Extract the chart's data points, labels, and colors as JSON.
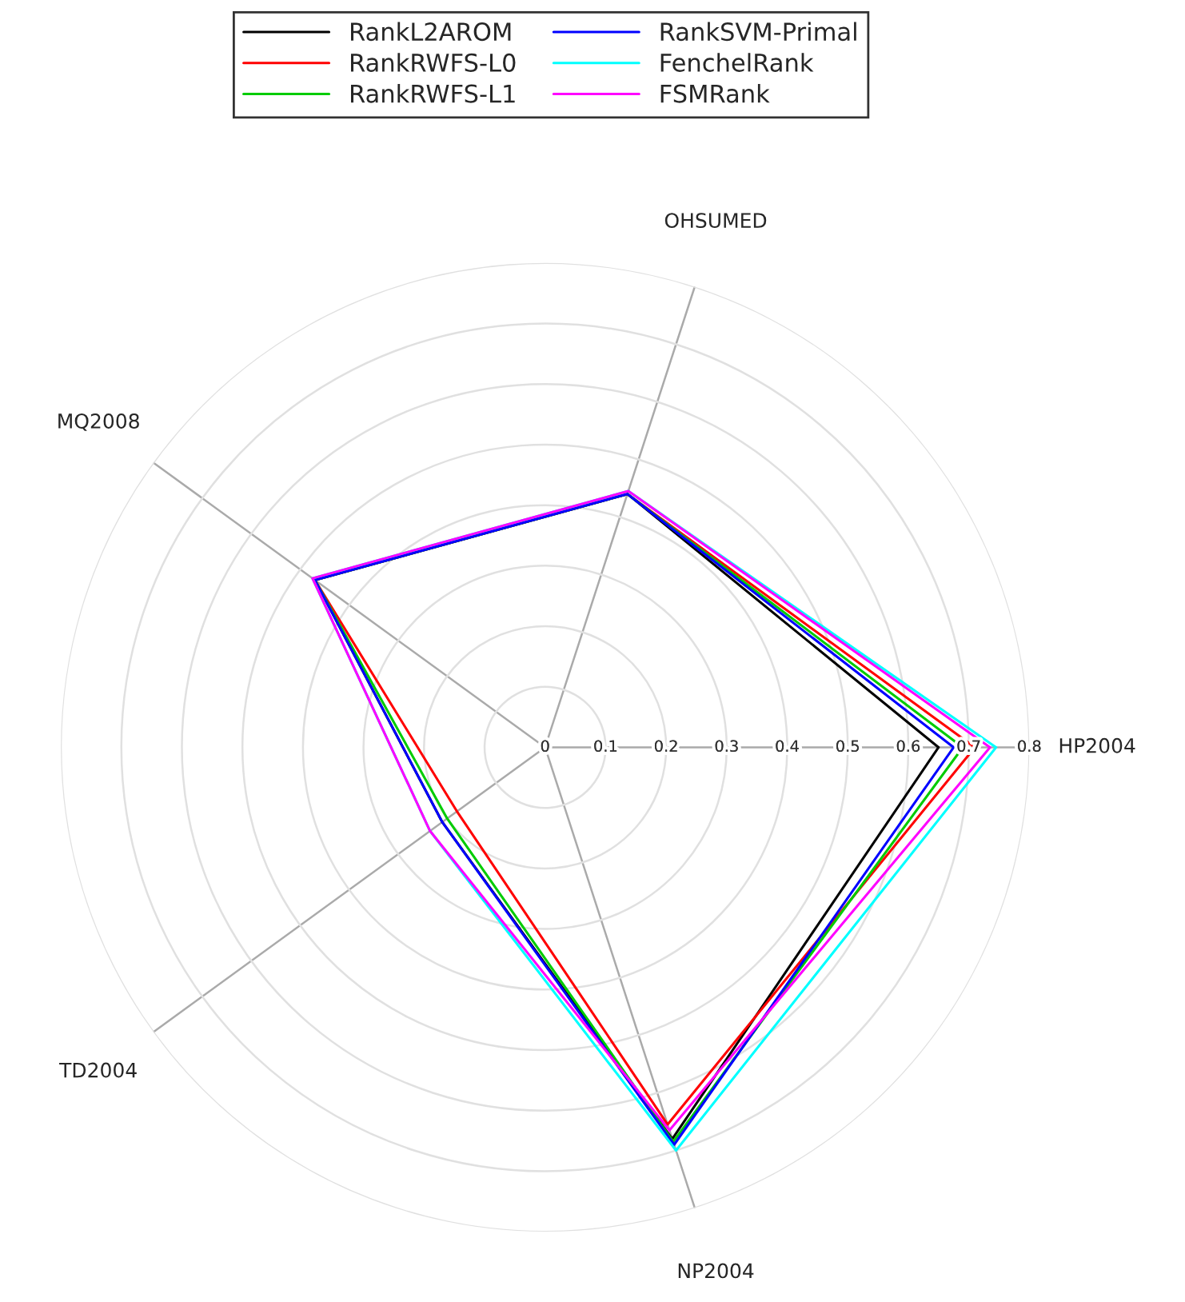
{
  "chart_data": {
    "type": "radar",
    "categories": [
      "OHSUMED",
      "HP2004",
      "NP2004",
      "TD2004",
      "MQ2008"
    ],
    "series": [
      {
        "name": "RankL2AROM",
        "color": "#000000",
        "values": [
          0.44,
          0.65,
          0.68,
          0.21,
          0.47
        ]
      },
      {
        "name": "RankRWFS-L0",
        "color": "#ff0000",
        "values": [
          0.44,
          0.71,
          0.655,
          0.18,
          0.47
        ]
      },
      {
        "name": "RankRWFS-L1",
        "color": "#00cc00",
        "values": [
          0.44,
          0.69,
          0.685,
          0.2,
          0.47
        ]
      },
      {
        "name": "RankSVM-Primal",
        "color": "#0000ff",
        "values": [
          0.44,
          0.675,
          0.69,
          0.21,
          0.47
        ]
      },
      {
        "name": "FenchelRank",
        "color": "#00ffff",
        "values": [
          0.445,
          0.745,
          0.7,
          0.235,
          0.475
        ]
      },
      {
        "name": "FSMRank",
        "color": "#ff00ff",
        "values": [
          0.445,
          0.735,
          0.665,
          0.235,
          0.475
        ]
      }
    ],
    "ylim": [
      0,
      0.8
    ],
    "yticks": [
      0,
      0.1,
      0.2,
      0.3,
      0.4,
      0.5,
      0.6,
      0.7,
      0.8
    ],
    "grid": true,
    "legend": "top",
    "marker": "none",
    "line_style": "solid"
  }
}
